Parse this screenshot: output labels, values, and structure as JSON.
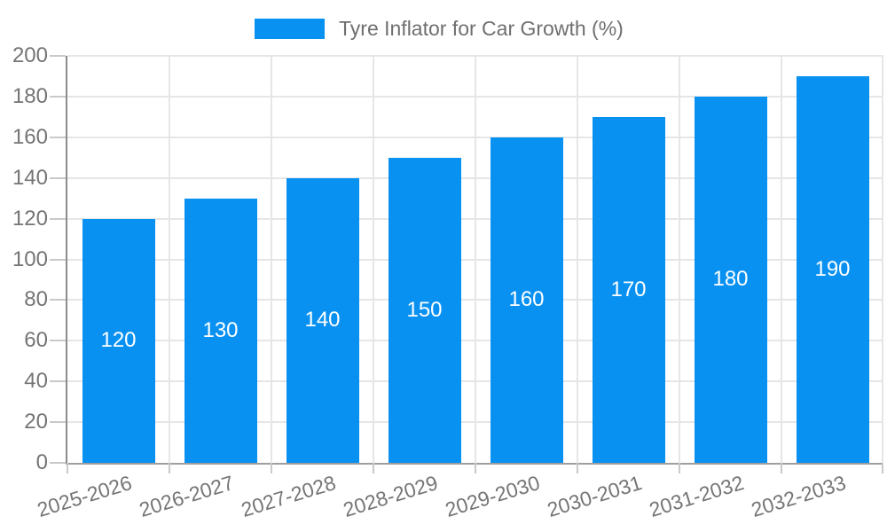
{
  "chart_data": {
    "type": "bar",
    "legend_label": "Tyre Inflator for Car Growth (%)",
    "legend_position": "top",
    "categories": [
      "2025-2026",
      "2026-2027",
      "2027-2028",
      "2028-2029",
      "2029-2030",
      "2030-2031",
      "2031-2032",
      "2032-2033"
    ],
    "series": [
      {
        "name": "Tyre Inflator for Car Growth (%)",
        "values": [
          120,
          130,
          140,
          150,
          160,
          170,
          180,
          190
        ]
      }
    ],
    "ylim": [
      0,
      200
    ],
    "ytick_step": 20,
    "grid": true,
    "value_labels": "inside-center",
    "colors": {
      "bar": "#0991f2",
      "value_label": "#ffffff",
      "axis_text": "#757575",
      "legend_text": "#6f6f6f",
      "gridline": "#e6e6e6",
      "axis_line_y": "#8c8c8c",
      "axis_line_x": "#9e9e9e",
      "tick": "#c9c9c9"
    }
  }
}
